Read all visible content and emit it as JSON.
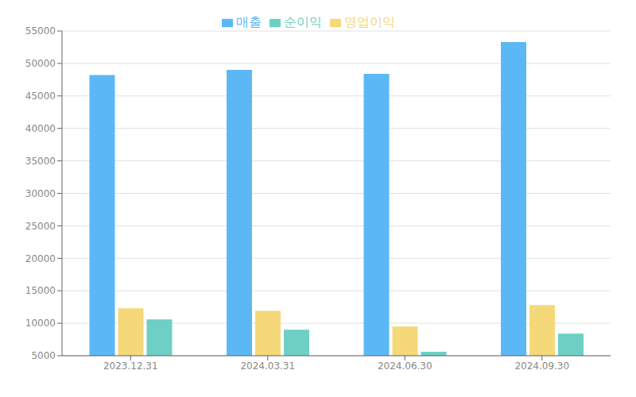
{
  "chart_data": {
    "type": "bar",
    "categories": [
      "2023.12.31",
      "2024.03.31",
      "2024.06.30",
      "2024.09.30"
    ],
    "series": [
      {
        "name": "매출",
        "values": [
          48200,
          49000,
          48400,
          53300
        ],
        "color": "#5BB8F5"
      },
      {
        "name": "영업이익",
        "values": [
          12300,
          11900,
          9500,
          12800
        ],
        "color": "#F5D87A"
      },
      {
        "name": "순이익",
        "values": [
          10600,
          9000,
          5600,
          8400
        ],
        "color": "#6ECFC4"
      }
    ],
    "ylim": [
      5000,
      55000
    ],
    "yticks": [
      5000,
      10000,
      15000,
      20000,
      25000,
      30000,
      35000,
      40000,
      45000,
      50000,
      55000
    ],
    "grid": true,
    "legend": "top"
  }
}
